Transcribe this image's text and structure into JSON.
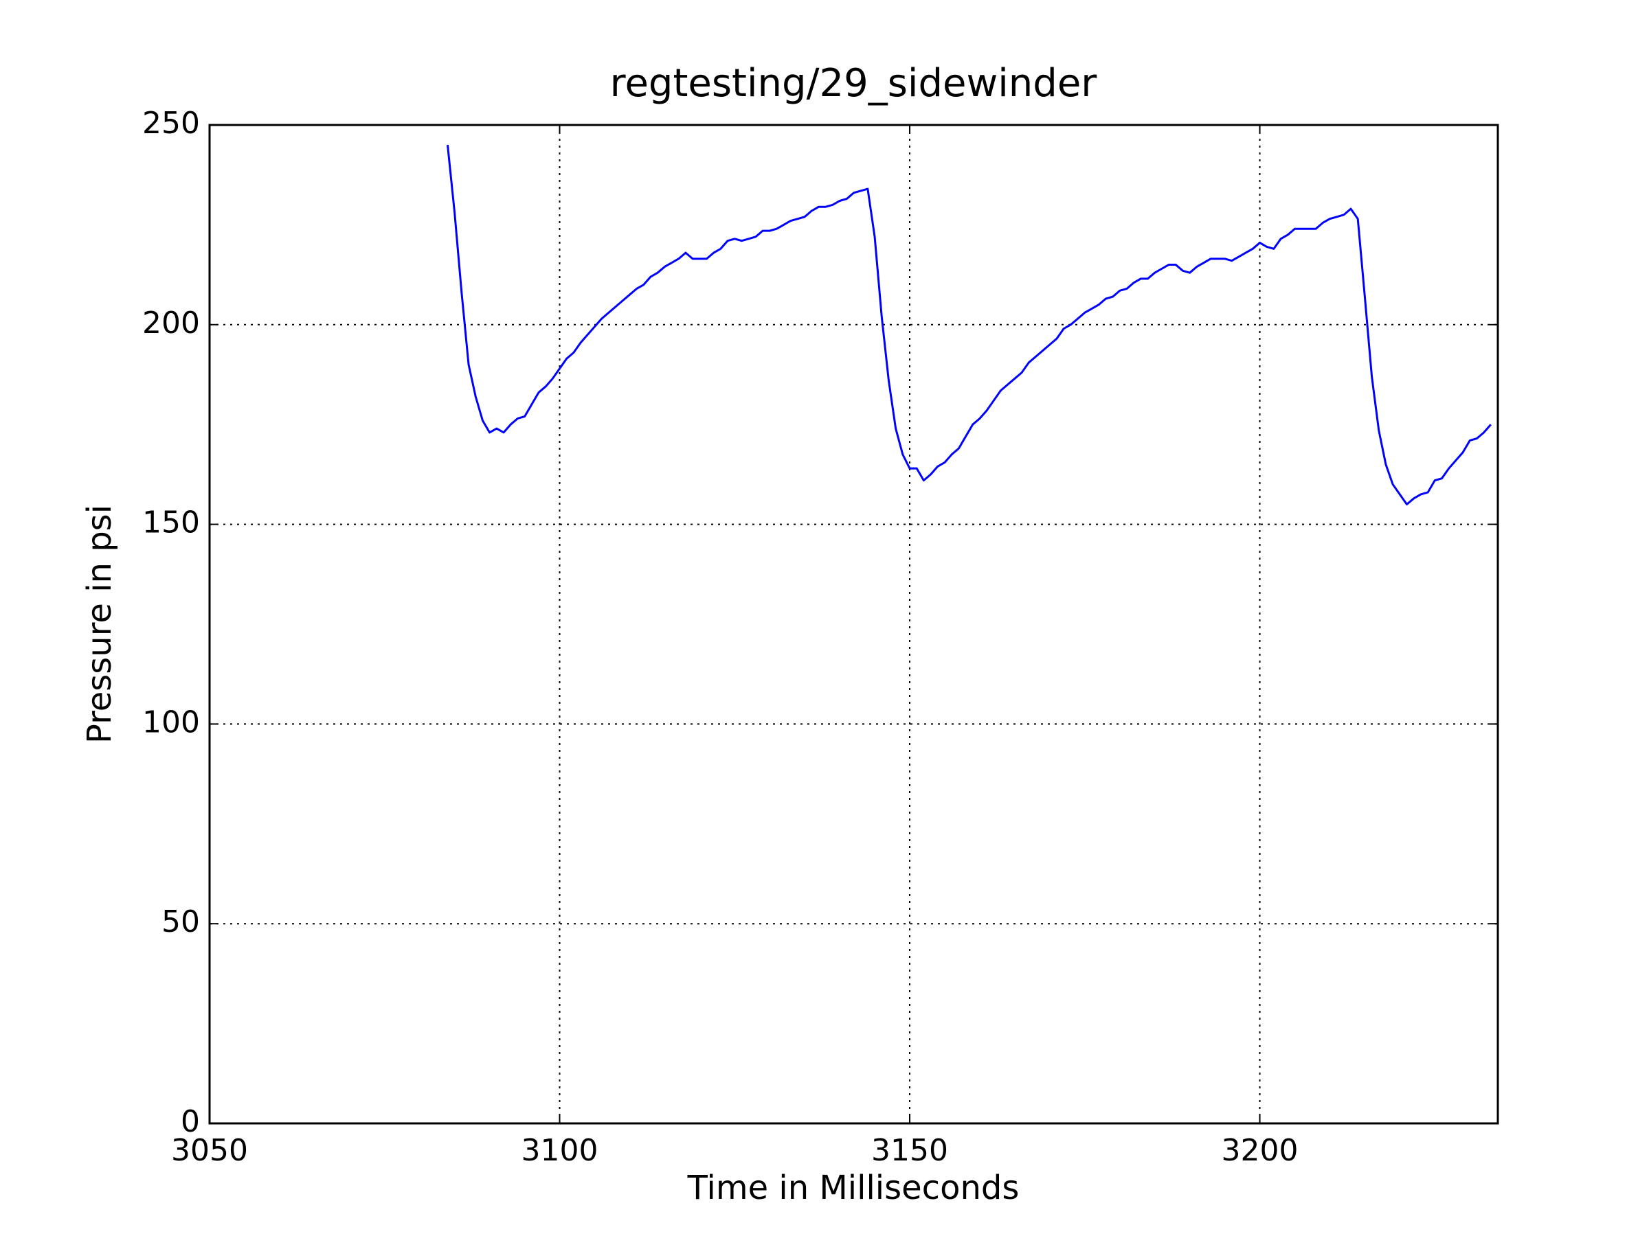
{
  "chart_data": {
    "type": "line",
    "title": "regtesting/29_sidewinder",
    "x_label": "Time in Milliseconds",
    "y_label": "Pressure in psi",
    "color": "#0000ff",
    "grid": true,
    "xlim": [
      3050,
      3234
    ],
    "ylim": [
      0,
      250
    ],
    "xticks": [
      3050,
      3100,
      3150,
      3200
    ],
    "yticks": [
      0,
      50,
      100,
      150,
      200,
      250
    ],
    "x": [
      3084,
      3085,
      3086,
      3087,
      3088,
      3089,
      3090,
      3091,
      3092,
      3093,
      3094,
      3095,
      3096,
      3097,
      3098,
      3099,
      3100,
      3101,
      3102,
      3103,
      3104,
      3105,
      3106,
      3107,
      3108,
      3109,
      3110,
      3111,
      3112,
      3113,
      3114,
      3115,
      3116,
      3117,
      3118,
      3119,
      3120,
      3121,
      3122,
      3123,
      3124,
      3125,
      3126,
      3127,
      3128,
      3129,
      3130,
      3131,
      3132,
      3133,
      3134,
      3135,
      3136,
      3137,
      3138,
      3139,
      3140,
      3141,
      3142,
      3143,
      3144,
      3145,
      3146,
      3147,
      3148,
      3149,
      3150,
      3151,
      3152,
      3153,
      3154,
      3155,
      3156,
      3157,
      3158,
      3159,
      3160,
      3161,
      3162,
      3163,
      3164,
      3165,
      3166,
      3167,
      3168,
      3169,
      3170,
      3171,
      3172,
      3173,
      3174,
      3175,
      3176,
      3177,
      3178,
      3179,
      3180,
      3181,
      3182,
      3183,
      3184,
      3185,
      3186,
      3187,
      3188,
      3189,
      3190,
      3191,
      3192,
      3193,
      3194,
      3195,
      3196,
      3197,
      3198,
      3199,
      3200,
      3201,
      3202,
      3203,
      3204,
      3205,
      3206,
      3207,
      3208,
      3209,
      3210,
      3211,
      3212,
      3213,
      3214,
      3215,
      3216,
      3217,
      3218,
      3219,
      3220,
      3221,
      3222,
      3223,
      3224,
      3225,
      3226,
      3227,
      3228,
      3229,
      3230,
      3231,
      3232,
      3233
    ],
    "values": [
      245,
      228,
      208,
      190,
      182,
      176,
      173,
      174,
      173,
      175,
      176.5,
      177,
      180,
      183,
      184.5,
      186.5,
      189,
      191.5,
      193,
      195.5,
      197.5,
      199.5,
      201.5,
      203,
      204.5,
      206,
      207.5,
      209,
      210,
      212,
      213,
      214.5,
      215.5,
      216.5,
      218,
      216.5,
      216.5,
      216.5,
      218,
      219,
      221,
      221.5,
      221,
      221.5,
      222,
      223.5,
      223.5,
      224,
      225,
      226,
      226.5,
      227,
      228.5,
      229.5,
      229.5,
      230,
      231,
      231.5,
      233,
      233.5,
      234,
      222,
      202,
      186,
      174,
      167.5,
      164,
      164,
      161,
      162.5,
      164.5,
      165.5,
      167.5,
      169,
      172,
      175,
      176.5,
      178.5,
      181,
      183.5,
      185,
      186.5,
      188,
      190.5,
      192,
      193.5,
      195,
      196.5,
      199,
      200,
      201.5,
      203,
      204,
      205,
      206.5,
      207,
      208.5,
      209,
      210.5,
      211.5,
      211.5,
      213,
      214,
      215,
      215,
      213.5,
      213,
      214.5,
      215.5,
      216.5,
      216.5,
      216.5,
      216,
      217,
      218,
      219,
      220.5,
      219.5,
      219,
      221.5,
      222.5,
      224,
      224,
      224,
      224,
      225.5,
      226.5,
      227,
      227.5,
      229,
      226.5,
      207,
      187,
      173.5,
      165,
      160,
      157.5,
      155,
      156.5,
      157.5,
      158,
      161,
      161.5,
      164,
      166,
      168,
      171,
      171.5,
      173,
      175
    ]
  }
}
